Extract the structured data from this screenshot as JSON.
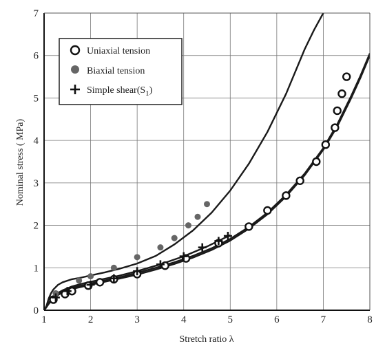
{
  "chart_data": {
    "type": "scatter",
    "title": "",
    "xlabel": "Stretch ratio λ",
    "ylabel": "Nominal stress ( MPa)",
    "xlim": [
      1,
      8
    ],
    "ylim": [
      0,
      7
    ],
    "xticks": [
      "1",
      "2",
      "3",
      "4",
      "5",
      "6",
      "7",
      "8"
    ],
    "yticks": [
      "0",
      "1",
      "2",
      "3",
      "4",
      "5",
      "6",
      "7"
    ],
    "grid": true,
    "legend_position": "top-left",
    "legend": [
      {
        "label": "Uniaxial tension",
        "marker": "open-circle"
      },
      {
        "label": "Biaxial tension",
        "marker": "filled-circle"
      },
      {
        "label": "Simple shear(S",
        "subscript": "1",
        "suffix": ")",
        "marker": "plus"
      }
    ],
    "series": [
      {
        "name": "Uniaxial tension",
        "marker": "open-circle",
        "x": [
          1.2,
          1.45,
          1.6,
          1.95,
          2.2,
          2.5,
          3.0,
          3.6,
          4.05,
          4.75,
          5.4,
          5.8,
          6.2,
          6.5,
          6.85,
          7.05,
          7.25,
          7.3,
          7.4,
          7.5
        ],
        "y": [
          0.25,
          0.38,
          0.45,
          0.58,
          0.66,
          0.73,
          0.85,
          1.05,
          1.22,
          1.58,
          1.97,
          2.35,
          2.7,
          3.05,
          3.5,
          3.9,
          4.3,
          4.7,
          5.1,
          5.5
        ]
      },
      {
        "name": "Biaxial tension",
        "marker": "filled-circle",
        "color": "#666666",
        "x": [
          1.25,
          1.75,
          2.0,
          2.5,
          3.0,
          3.5,
          3.8,
          4.1,
          4.3,
          4.5
        ],
        "y": [
          0.4,
          0.7,
          0.8,
          1.0,
          1.25,
          1.48,
          1.7,
          2.0,
          2.2,
          2.5
        ]
      },
      {
        "name": "Simple shear(S1)",
        "marker": "plus",
        "x": [
          1.25,
          1.5,
          2.0,
          2.5,
          3.0,
          3.5,
          4.0,
          4.4,
          4.75,
          4.95
        ],
        "y": [
          0.3,
          0.45,
          0.6,
          0.75,
          0.92,
          1.08,
          1.27,
          1.48,
          1.63,
          1.75
        ]
      }
    ],
    "model_curves": [
      {
        "x": [
          1.0,
          1.05,
          1.1,
          1.15,
          1.2,
          1.3,
          1.4,
          1.6,
          1.8,
          2.0,
          2.3,
          2.6,
          3.0,
          3.4,
          3.8,
          4.2,
          4.6,
          5.0,
          5.4,
          5.8,
          6.2,
          6.6,
          6.8,
          7.0
        ],
        "y": [
          0.0,
          0.1,
          0.28,
          0.4,
          0.49,
          0.6,
          0.66,
          0.73,
          0.77,
          0.82,
          0.89,
          0.97,
          1.1,
          1.28,
          1.55,
          1.88,
          2.3,
          2.82,
          3.45,
          4.2,
          5.1,
          6.15,
          6.6,
          7.0
        ]
      },
      {
        "x": [
          1.0,
          1.05,
          1.1,
          1.2,
          1.3,
          1.4,
          1.6,
          1.8,
          2.0,
          2.3,
          2.6,
          3.0,
          3.4,
          3.8,
          4.2,
          4.6,
          5.0,
          5.4,
          5.8,
          6.2,
          6.6,
          7.0,
          7.3,
          7.6,
          7.8,
          8.0
        ],
        "y": [
          0.0,
          0.08,
          0.17,
          0.3,
          0.39,
          0.45,
          0.53,
          0.58,
          0.63,
          0.7,
          0.77,
          0.88,
          1.0,
          1.13,
          1.28,
          1.46,
          1.68,
          1.96,
          2.3,
          2.72,
          3.22,
          3.82,
          4.38,
          5.05,
          5.53,
          6.05
        ]
      },
      {
        "x": [
          1.0,
          1.05,
          1.1,
          1.2,
          1.3,
          1.4,
          1.6,
          1.8,
          2.0,
          2.3,
          2.6,
          3.0,
          3.4,
          3.8,
          4.2,
          4.6,
          5.0,
          5.4,
          5.8,
          6.2,
          6.6,
          7.0,
          7.3,
          7.6,
          7.8,
          8.0
        ],
        "y": [
          0.0,
          0.07,
          0.15,
          0.27,
          0.36,
          0.42,
          0.5,
          0.55,
          0.6,
          0.67,
          0.74,
          0.84,
          0.96,
          1.09,
          1.24,
          1.42,
          1.64,
          1.92,
          2.26,
          2.68,
          3.18,
          3.78,
          4.33,
          5.0,
          5.48,
          6.0
        ]
      },
      {
        "x": [
          1.0,
          1.05,
          1.1,
          1.2,
          1.3,
          1.4,
          1.6,
          1.8,
          2.0,
          2.3,
          2.6,
          3.0,
          3.5,
          4.0,
          4.5,
          5.0
        ],
        "y": [
          0.0,
          0.08,
          0.18,
          0.32,
          0.41,
          0.47,
          0.56,
          0.62,
          0.67,
          0.74,
          0.81,
          0.92,
          1.08,
          1.27,
          1.5,
          1.77
        ]
      }
    ]
  }
}
